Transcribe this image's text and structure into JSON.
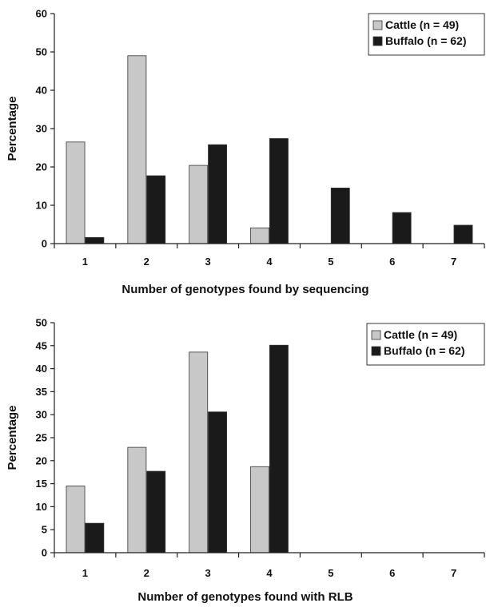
{
  "chart_data": [
    {
      "type": "bar",
      "categories": [
        "1",
        "2",
        "3",
        "4",
        "5",
        "6",
        "7"
      ],
      "series": [
        {
          "name": "Cattle (n = 49)",
          "values": [
            26.5,
            49,
            20.4,
            4.1,
            0,
            0,
            0
          ],
          "color": "#c8c8c8"
        },
        {
          "name": "Buffalo (n = 62)",
          "values": [
            1.6,
            17.7,
            25.8,
            27.4,
            14.5,
            8.1,
            4.8
          ],
          "color": "#1a1a1a"
        }
      ],
      "title": "",
      "xlabel": "Number of genotypes found by sequencing",
      "ylabel": "Percentage",
      "ylim": [
        0,
        60
      ],
      "yticks": [
        "0",
        "10",
        "20",
        "30",
        "40",
        "50",
        "60"
      ],
      "grid": false,
      "legend_position": "top-right"
    },
    {
      "type": "bar",
      "categories": [
        "1",
        "2",
        "3",
        "4",
        "5",
        "6",
        "7"
      ],
      "series": [
        {
          "name": "Cattle (n = 49)",
          "values": [
            14.5,
            22.9,
            43.6,
            18.7,
            0,
            0,
            0
          ],
          "color": "#c8c8c8"
        },
        {
          "name": "Buffalo (n = 62)",
          "values": [
            6.4,
            17.7,
            30.6,
            45.1,
            0,
            0,
            0
          ],
          "color": "#1a1a1a"
        }
      ],
      "title": "",
      "xlabel": "Number of genotypes found with RLB",
      "ylabel": "Percentage",
      "ylim": [
        0,
        50
      ],
      "yticks": [
        "0",
        "5",
        "10",
        "15",
        "20",
        "25",
        "30",
        "35",
        "40",
        "45",
        "50"
      ],
      "grid": false,
      "legend_position": "top-right"
    }
  ]
}
